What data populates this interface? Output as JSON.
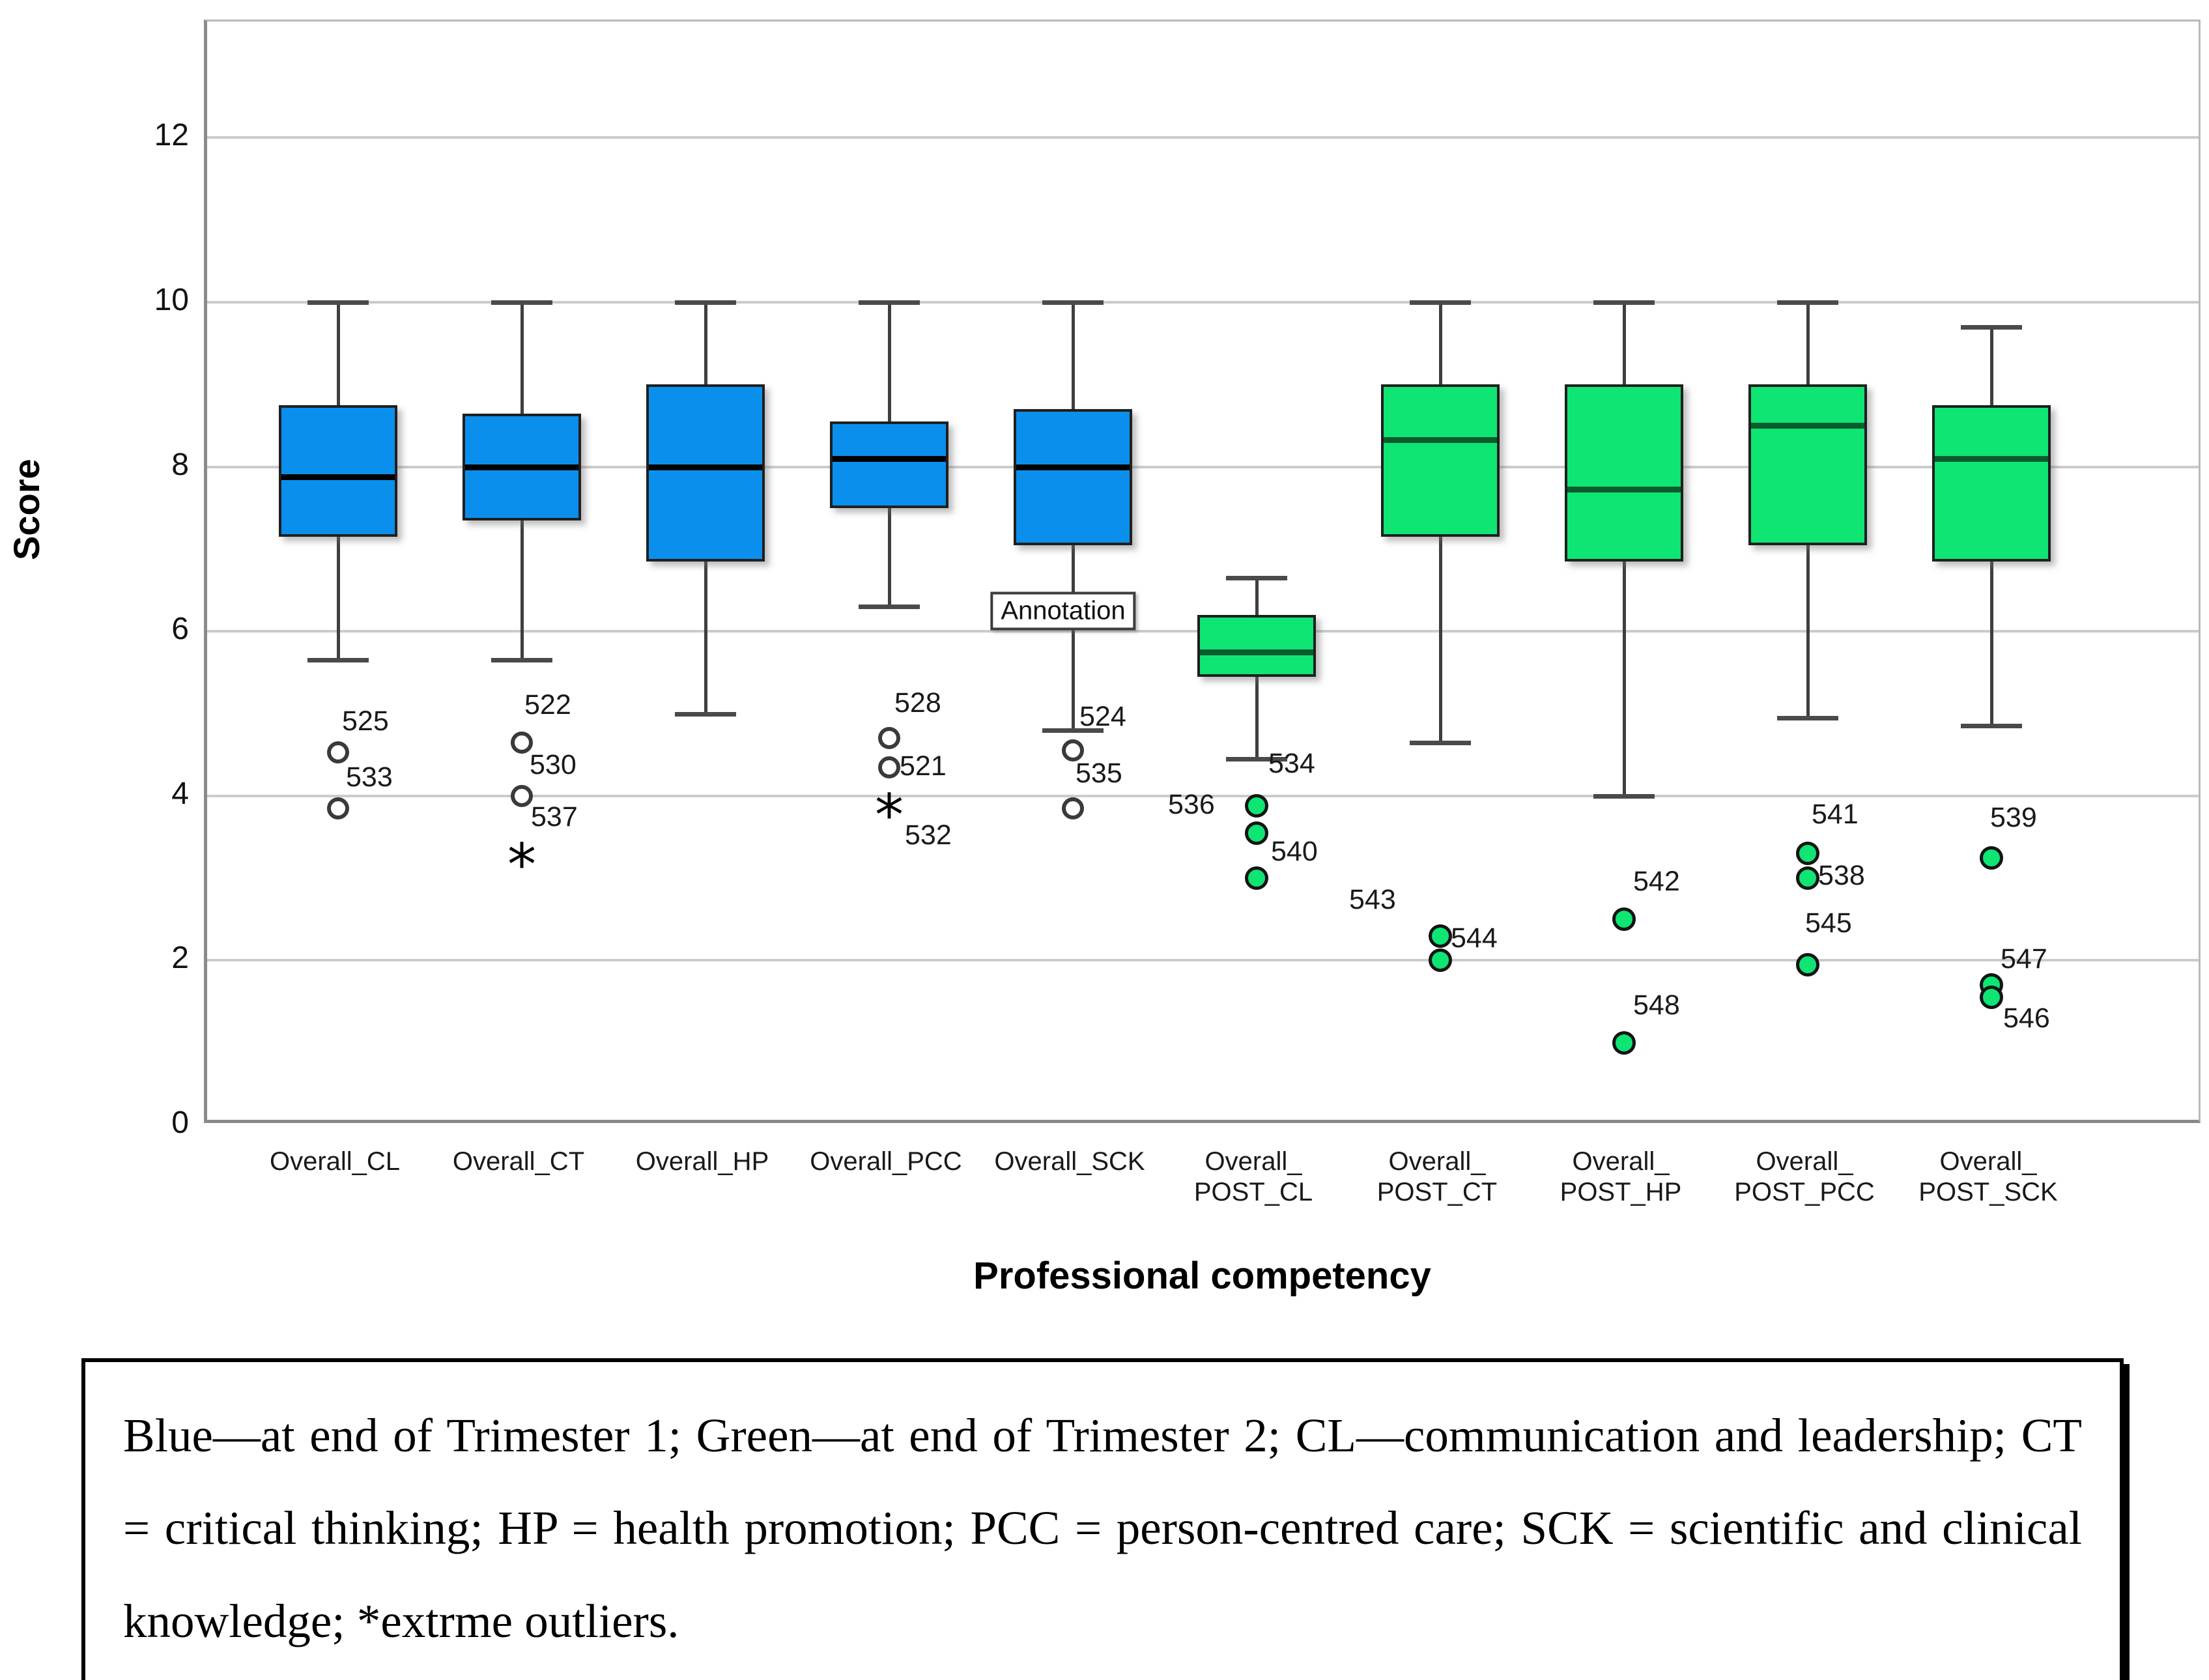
{
  "y_axis": {
    "title": "Score",
    "ticks": [
      "0",
      "2",
      "4",
      "6",
      "8",
      "10",
      "12"
    ],
    "min": 0,
    "max": 13.4
  },
  "x_axis": {
    "title": "Professional competency"
  },
  "annotation": {
    "text": "Annotation",
    "series_index": 4,
    "value": 6.22,
    "dx": -10
  },
  "colors": {
    "trimester1_fill": "#0a90ec",
    "trimester2_fill": "#0ee573",
    "median_trimester1": "#000000",
    "median_trimester2": "#0a5c2c",
    "grid": "#cbcbcb",
    "axis": "#8a8a8a"
  },
  "chart_data": {
    "type": "boxplot",
    "title": "",
    "xlabel": "Professional competency",
    "ylabel": "Score",
    "ylim": [
      0,
      13.4
    ],
    "grid_values": [
      2,
      4,
      6,
      8,
      10,
      12
    ],
    "legend_note": "Blue = end of Trimester 1, Green = end of Trimester 2",
    "series": [
      {
        "name": "Overall_CL",
        "label_lines": [
          "Overall_CL"
        ],
        "group": "trimester1",
        "whisker_low": 5.65,
        "q1": 7.15,
        "median": 7.88,
        "q3": 8.75,
        "whisker_high": 10,
        "outliers": [
          {
            "value": 4.53,
            "case": "525",
            "marker": "circle",
            "dx": 6,
            "dy": -72
          },
          {
            "value": 3.85,
            "case": "533",
            "marker": "circle",
            "dx": 12,
            "dy": -72
          }
        ]
      },
      {
        "name": "Overall_CT",
        "label_lines": [
          "Overall_CT"
        ],
        "group": "trimester1",
        "whisker_low": 5.65,
        "q1": 7.35,
        "median": 8.0,
        "q3": 8.65,
        "whisker_high": 10,
        "outliers": [
          {
            "value": 4.65,
            "case": "522",
            "marker": "circle",
            "dx": 4,
            "dy": -82
          },
          {
            "value": 4.0,
            "case": "530",
            "marker": "circle",
            "dx": 12,
            "dy": -72
          },
          {
            "value": 3.3,
            "case": "537",
            "marker": "star",
            "dx": 14,
            "dy": -80
          }
        ]
      },
      {
        "name": "Overall_HP",
        "label_lines": [
          "Overall_HP"
        ],
        "group": "trimester1",
        "whisker_low": 5.0,
        "q1": 6.85,
        "median": 8.0,
        "q3": 9.0,
        "whisker_high": 10,
        "outliers": []
      },
      {
        "name": "Overall_PCC",
        "label_lines": [
          "Overall_PCC"
        ],
        "group": "trimester1",
        "whisker_low": 6.3,
        "q1": 7.5,
        "median": 8.1,
        "q3": 8.55,
        "whisker_high": 10,
        "outliers": [
          {
            "value": 4.7,
            "case": "528",
            "marker": "circle",
            "dx": 8,
            "dy": -78
          },
          {
            "value": 4.35,
            "case": "521",
            "marker": "circle",
            "dx": 16,
            "dy": -26
          },
          {
            "value": 3.9,
            "case": "532",
            "marker": "star",
            "dx": 24,
            "dy": 24
          }
        ]
      },
      {
        "name": "Overall_SCK",
        "label_lines": [
          "Overall_SCK"
        ],
        "group": "trimester1",
        "whisker_low": 4.8,
        "q1": 7.05,
        "median": 8.0,
        "q3": 8.7,
        "whisker_high": 10,
        "outliers": [
          {
            "value": 4.55,
            "case": "524",
            "marker": "circle",
            "dx": 10,
            "dy": -76
          },
          {
            "value": 3.85,
            "case": "535",
            "marker": "circle",
            "dx": 4,
            "dy": -78
          }
        ]
      },
      {
        "name": "Overall_POST_CL",
        "label_lines": [
          "Overall_",
          "POST_CL"
        ],
        "group": "trimester2",
        "whisker_low": 4.45,
        "q1": 5.45,
        "median": 5.75,
        "q3": 6.2,
        "whisker_high": 6.65,
        "outliers": [
          {
            "value": 4.44,
            "case": "534",
            "marker": "none",
            "dx": 18,
            "dy": -18
          },
          {
            "value": 3.88,
            "case": "536",
            "marker": "circle",
            "dx": -136,
            "dy": -26
          },
          {
            "value": 3.55,
            "case": "540",
            "marker": "circle",
            "dx": 22,
            "dy": 4
          },
          {
            "value": 3.0,
            "case": "",
            "marker": "circle",
            "dx": 0,
            "dy": 0
          }
        ]
      },
      {
        "name": "Overall_POST_CT",
        "label_lines": [
          "Overall_",
          "POST_CT"
        ],
        "group": "trimester2",
        "whisker_low": 4.65,
        "q1": 7.15,
        "median": 8.33,
        "q3": 9.0,
        "whisker_high": 10,
        "outliers": [
          {
            "value": 2.3,
            "case": "543",
            "marker": "circle",
            "dx": -140,
            "dy": -80
          },
          {
            "value": 2.18,
            "case": "544",
            "marker": "none",
            "dx": 16,
            "dy": -36
          },
          {
            "value": 2.0,
            "case": "",
            "marker": "circle",
            "dx": 0,
            "dy": 0
          }
        ]
      },
      {
        "name": "Overall_POST_HP",
        "label_lines": [
          "Overall_",
          "POST_HP"
        ],
        "group": "trimester2",
        "whisker_low": 4.0,
        "q1": 6.85,
        "median": 7.73,
        "q3": 9.0,
        "whisker_high": 10,
        "outliers": [
          {
            "value": 2.5,
            "case": "542",
            "marker": "circle",
            "dx": 14,
            "dy": -82
          },
          {
            "value": 1.0,
            "case": "548",
            "marker": "circle",
            "dx": 14,
            "dy": -82
          }
        ]
      },
      {
        "name": "Overall_POST_PCC",
        "label_lines": [
          "Overall_",
          "POST_PCC"
        ],
        "group": "trimester2",
        "whisker_low": 4.95,
        "q1": 7.05,
        "median": 8.5,
        "q3": 9.0,
        "whisker_high": 10,
        "outliers": [
          {
            "value": 3.3,
            "case": "541",
            "marker": "circle",
            "dx": 6,
            "dy": -84
          },
          {
            "value": 3.0,
            "case": "538",
            "marker": "circle",
            "dx": 16,
            "dy": -28
          },
          {
            "value": 1.95,
            "case": "545",
            "marker": "circle",
            "dx": -4,
            "dy": -88
          }
        ]
      },
      {
        "name": "Overall_POST_SCK",
        "label_lines": [
          "Overall_",
          "POST_SCK"
        ],
        "group": "trimester2",
        "whisker_low": 4.85,
        "q1": 6.85,
        "median": 8.1,
        "q3": 8.75,
        "whisker_high": 9.7,
        "outliers": [
          {
            "value": 3.25,
            "case": "539",
            "marker": "circle",
            "dx": -2,
            "dy": -86
          },
          {
            "value": 1.7,
            "case": "547",
            "marker": "circle",
            "dx": 14,
            "dy": -64
          },
          {
            "value": 1.55,
            "case": "546",
            "marker": "circle",
            "dx": 18,
            "dy": 8
          }
        ]
      }
    ]
  },
  "caption": {
    "text": "Blue—at end of Trimester 1; Green—at end of Trimester 2; CL—communication and leadership; CT = critical thinking; HP = health promotion; PCC = person-centred care; SCK = scientific and clinical knowledge; *extrme outliers."
  }
}
